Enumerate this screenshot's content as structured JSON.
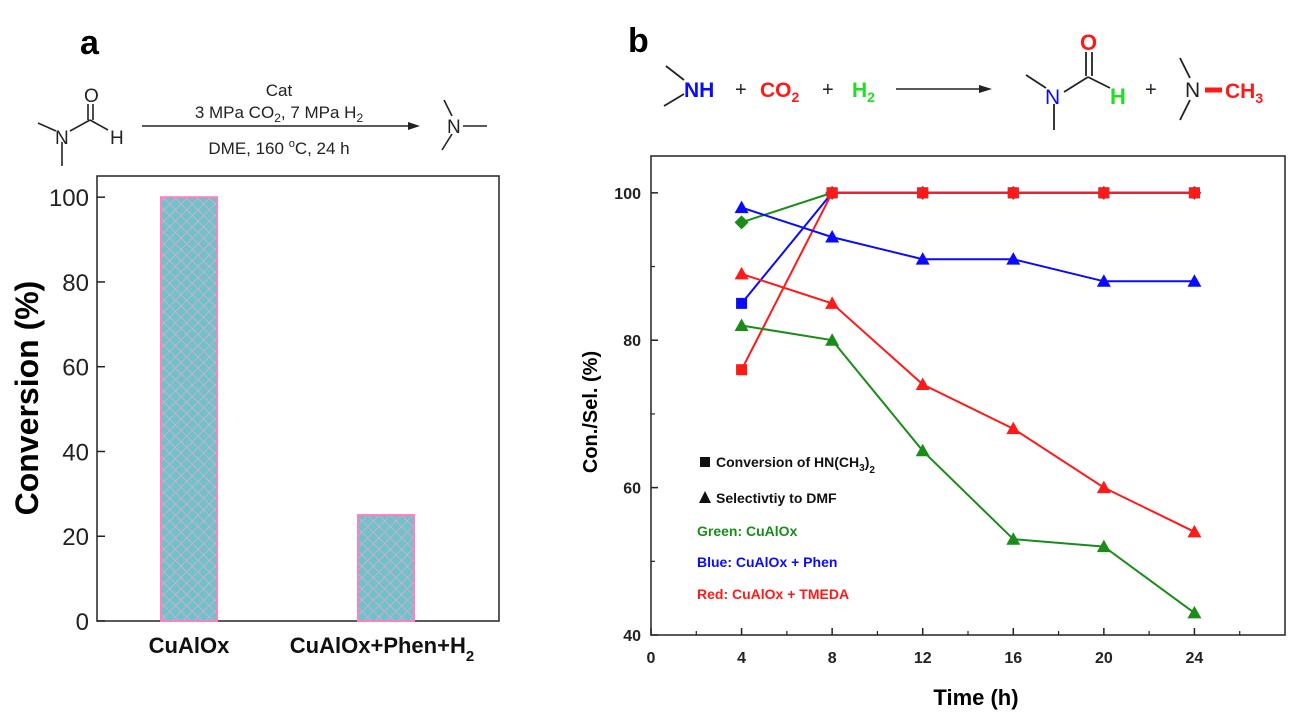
{
  "panel_a": {
    "label": "a",
    "reaction": {
      "catalyst": "Cat",
      "pressure": {
        "prefix": "3 MPa CO",
        "co2_sub": "2",
        "middle": ", 7 MPa H",
        "h2_sub": "2"
      },
      "conditions": {
        "prefix": "DME, 160 ",
        "deg": "o",
        "suffix": "C, 24 h"
      },
      "reactant_atoms": {
        "O": "O",
        "N": "N",
        "H": "H"
      },
      "product_atoms": {
        "N": "N"
      }
    }
  },
  "panel_b": {
    "label": "b",
    "reaction": {
      "amine": "NH",
      "plus1": "+",
      "co2": "CO",
      "co2_sub": "2",
      "plus2": "+",
      "h2": "H",
      "h2_sub": "2",
      "dmf_O": "O",
      "dmf_N": "N",
      "dmf_H": "H",
      "plus3": "+",
      "tma_N": "N",
      "tma_CH": "CH",
      "tma_sub": "3"
    },
    "legend": {
      "square_text": "Conversion of HN(CH",
      "square_sub": "3",
      "square_close": ")",
      "square_sub2": "2",
      "triangle_text": "Selectivtiy to DMF",
      "green": "Green: CuAlOx",
      "blue": "Blue: CuAlOx + Phen",
      "red": "Red: CuAlOx + TMEDA"
    }
  },
  "colors": {
    "green": "#1a8c1a",
    "blue": "#0a0aff",
    "red": "#ff1a1a",
    "bar_fill": "#6ec3c9",
    "bar_edge": "#ff80c0"
  },
  "chart_data": [
    {
      "type": "bar",
      "title": "",
      "xlabel": "",
      "ylabel": "Conversion (%)",
      "categories": [
        "CuAlOx",
        "CuAlOx+Phen+H"
      ],
      "category_subscripts": [
        "",
        "2"
      ],
      "values": [
        100,
        25
      ],
      "ylim": [
        0,
        105
      ],
      "yticks": [
        "0",
        "20",
        "40",
        "60",
        "80",
        "100"
      ]
    },
    {
      "type": "line",
      "title": "",
      "xlabel": "Time (h)",
      "ylabel": "Con./Sel. (%)",
      "xlim": [
        0,
        28
      ],
      "ylim": [
        40,
        105
      ],
      "xticks": [
        "0",
        "4",
        "8",
        "12",
        "16",
        "20",
        "24"
      ],
      "yticks": [
        "40",
        "60",
        "80",
        "100"
      ],
      "series": [
        {
          "name": "CuAlOx conversion",
          "color": "green",
          "marker": "diamond",
          "x": [
            4,
            8,
            12,
            16,
            20,
            24
          ],
          "y": [
            96,
            100,
            100,
            100,
            100,
            100
          ]
        },
        {
          "name": "CuAlOx + Phen conversion",
          "color": "blue",
          "marker": "square",
          "x": [
            4,
            8,
            12,
            16,
            20,
            24
          ],
          "y": [
            85,
            100,
            100,
            100,
            100,
            100
          ]
        },
        {
          "name": "CuAlOx + TMEDA conversion",
          "color": "red",
          "marker": "square",
          "x": [
            4,
            8,
            12,
            16,
            20,
            24
          ],
          "y": [
            76,
            100,
            100,
            100,
            100,
            100
          ]
        },
        {
          "name": "CuAlOx + Phen selectivity",
          "color": "blue",
          "marker": "triangle",
          "x": [
            4,
            8,
            12,
            16,
            20,
            24
          ],
          "y": [
            98,
            94,
            91,
            91,
            88,
            88
          ]
        },
        {
          "name": "CuAlOx + TMEDA selectivity",
          "color": "red",
          "marker": "triangle",
          "x": [
            4,
            8,
            12,
            16,
            20,
            24
          ],
          "y": [
            89,
            85,
            74,
            68,
            60,
            54
          ]
        },
        {
          "name": "CuAlOx selectivity",
          "color": "green",
          "marker": "triangle",
          "x": [
            4,
            8,
            12,
            16,
            20,
            24
          ],
          "y": [
            82,
            80,
            65,
            53,
            52,
            43
          ]
        }
      ]
    }
  ]
}
